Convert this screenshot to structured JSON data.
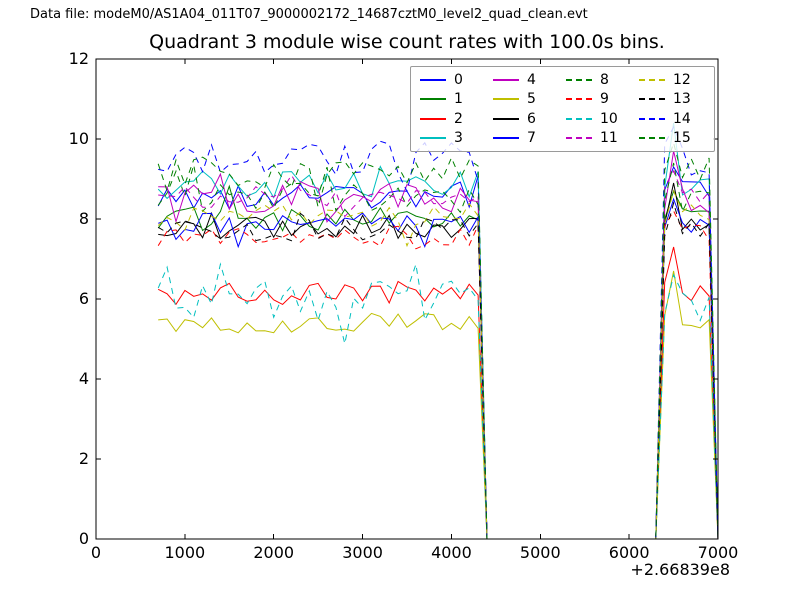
{
  "header": {
    "datafile_text": "Data file: modeM0/AS1A04_011T07_9000002172_14687cztM0_level2_quad_clean.evt"
  },
  "chart_data": {
    "type": "line",
    "title": "Quadrant 3 module wise count rates with 100.0s bins.",
    "xlabel": "",
    "ylabel": "",
    "x_offset_label": "+2.66839e8",
    "bin_size_seconds": 100.0,
    "quadrant": 3,
    "xlim": [
      0,
      7000
    ],
    "ylim": [
      0,
      12
    ],
    "xticks": [
      0,
      1000,
      2000,
      3000,
      4000,
      5000,
      6000,
      7000
    ],
    "yticks": [
      0,
      2,
      4,
      6,
      8,
      10,
      12
    ],
    "grid": false,
    "background_color": "#ffffff",
    "axis_color": "#000000",
    "legend": {
      "location": "upper right",
      "columns": 4,
      "frame_alpha": 0.8
    },
    "x_start": 700,
    "x_step": 100,
    "x_end": 7000,
    "segments": {
      "plateau_end": 4300,
      "gap_start": 4400,
      "gap_end": 6300,
      "hump_start": 6400,
      "peak_x": 6500,
      "hump_end": 6900,
      "final_zero": 7000
    },
    "series": [
      {
        "label": "0",
        "color": "#0000ff",
        "dashed": false,
        "mean": 8.6,
        "amp": 0.35,
        "peak": 9.3,
        "seed": 11
      },
      {
        "label": "1",
        "color": "#008000",
        "dashed": false,
        "mean": 8.0,
        "amp": 0.3,
        "peak": 8.7,
        "seed": 22
      },
      {
        "label": "2",
        "color": "#ff0000",
        "dashed": false,
        "mean": 6.15,
        "amp": 0.3,
        "peak": 7.3,
        "seed": 33
      },
      {
        "label": "3",
        "color": "#00bfbf",
        "dashed": false,
        "mean": 8.85,
        "amp": 0.35,
        "peak": 10.4,
        "seed": 44
      },
      {
        "label": "4",
        "color": "#bf00bf",
        "dashed": false,
        "mean": 8.55,
        "amp": 0.4,
        "peak": 9.7,
        "seed": 55
      },
      {
        "label": "5",
        "color": "#bfbf00",
        "dashed": false,
        "mean": 5.4,
        "amp": 0.25,
        "peak": 6.7,
        "seed": 66
      },
      {
        "label": "6",
        "color": "#000000",
        "dashed": false,
        "mean": 7.8,
        "amp": 0.3,
        "peak": 8.9,
        "seed": 77
      },
      {
        "label": "7",
        "color": "#0000ff",
        "dashed": false,
        "mean": 7.85,
        "amp": 0.3,
        "peak": 8.5,
        "seed": 88
      },
      {
        "label": "8",
        "color": "#008000",
        "dashed": true,
        "mean": 8.55,
        "amp": 0.4,
        "peak": 9.4,
        "seed": 99
      },
      {
        "label": "9",
        "color": "#ff0000",
        "dashed": true,
        "mean": 7.55,
        "amp": 0.3,
        "peak": 8.2,
        "seed": 110
      },
      {
        "label": "10",
        "color": "#00bfbf",
        "dashed": true,
        "mean": 5.95,
        "amp": 0.5,
        "peak": 6.6,
        "seed": 121
      },
      {
        "label": "11",
        "color": "#bf00bf",
        "dashed": true,
        "mean": 8.55,
        "amp": 0.3,
        "peak": 9.2,
        "seed": 132
      },
      {
        "label": "12",
        "color": "#bfbf00",
        "dashed": true,
        "mean": 8.1,
        "amp": 0.3,
        "peak": 8.7,
        "seed": 143
      },
      {
        "label": "13",
        "color": "#000000",
        "dashed": true,
        "mean": 7.75,
        "amp": 0.3,
        "peak": 8.4,
        "seed": 154
      },
      {
        "label": "14",
        "color": "#0000ff",
        "dashed": true,
        "mean": 9.55,
        "amp": 0.45,
        "peak": 10.3,
        "seed": 165
      },
      {
        "label": "15",
        "color": "#008000",
        "dashed": true,
        "mean": 9.15,
        "amp": 0.4,
        "peak": 9.9,
        "seed": 176
      }
    ]
  }
}
